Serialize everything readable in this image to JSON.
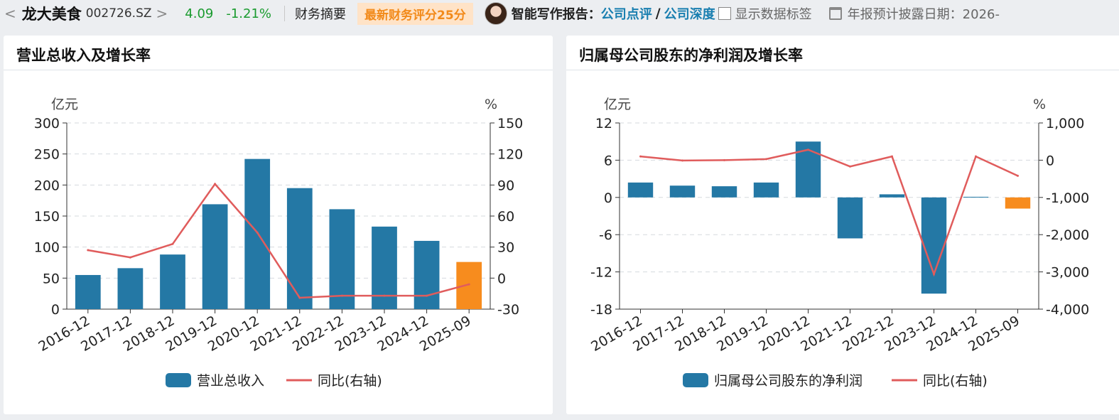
{
  "header": {
    "back": "<",
    "name": "龙大美食",
    "code": "002726.SZ",
    "forward": ">",
    "price": "4.09",
    "change": "-1.21%",
    "summary": "财务摘要",
    "score": "最新财务评分25分",
    "ai_report": "智能写作报告：",
    "link1": "公司点评",
    "slash": "/",
    "link2": "公司深度",
    "show_labels": "显示数据标签",
    "disclosure": "年报预计披露日期：2026-"
  },
  "colors": {
    "bar": "#2478a5",
    "bar_latest": "#f78c1e",
    "line": "#e05c5c",
    "up": "#1a9b2f",
    "down": "#1a9b2f",
    "link": "#1a7fb0"
  },
  "left": {
    "title": "营业总收入及增长率",
    "chart_data": {
      "type": "bar",
      "categories": [
        "2016-12",
        "2017-12",
        "2018-12",
        "2019-12",
        "2020-12",
        "2021-12",
        "2022-12",
        "2023-12",
        "2024-12",
        "2025-09"
      ],
      "left_unit": "亿元",
      "right_unit": "%",
      "ylim": [
        0,
        300
      ],
      "yticks": [
        0,
        50,
        100,
        150,
        200,
        250,
        300
      ],
      "y2lim": [
        -30,
        150
      ],
      "y2ticks": [
        "-30",
        "0",
        "30",
        "60",
        "90",
        "120",
        "150"
      ],
      "series": [
        {
          "name": "营业总收入",
          "type": "bar",
          "axis": "left",
          "values": [
            55,
            66,
            88,
            169,
            242,
            195,
            161,
            133,
            110,
            76
          ]
        },
        {
          "name": "同比(右轴)",
          "type": "line",
          "axis": "right",
          "values": [
            27,
            20,
            33,
            91,
            44,
            -19,
            -17,
            -17,
            -17,
            -6
          ]
        }
      ],
      "grid": true,
      "legend": "bottom"
    }
  },
  "right": {
    "title": "归属母公司股东的净利润及增长率",
    "chart_data": {
      "type": "bar",
      "categories": [
        "2016-12",
        "2017-12",
        "2018-12",
        "2019-12",
        "2020-12",
        "2021-12",
        "2022-12",
        "2023-12",
        "2024-12",
        "2025-09"
      ],
      "left_unit": "亿元",
      "right_unit": "%",
      "ylim": [
        -18,
        12
      ],
      "yticks": [
        -18,
        -12,
        -6,
        0,
        6,
        12
      ],
      "y2lim": [
        -4000,
        1000
      ],
      "y2ticks": [
        "-4,000",
        "-3,000",
        "-2,000",
        "-1,000",
        "0",
        "1,000"
      ],
      "series": [
        {
          "name": "归属母公司股东的净利润",
          "type": "bar",
          "axis": "left",
          "values": [
            2.4,
            1.9,
            1.8,
            2.4,
            9.0,
            -6.6,
            0.5,
            -15.5,
            0.1,
            -1.8
          ]
        },
        {
          "name": "同比(右轴)",
          "type": "line",
          "axis": "right",
          "values": [
            100,
            -10,
            0,
            30,
            280,
            -170,
            100,
            -3060,
            100,
            -420
          ]
        }
      ],
      "grid": true,
      "legend": "bottom"
    }
  }
}
